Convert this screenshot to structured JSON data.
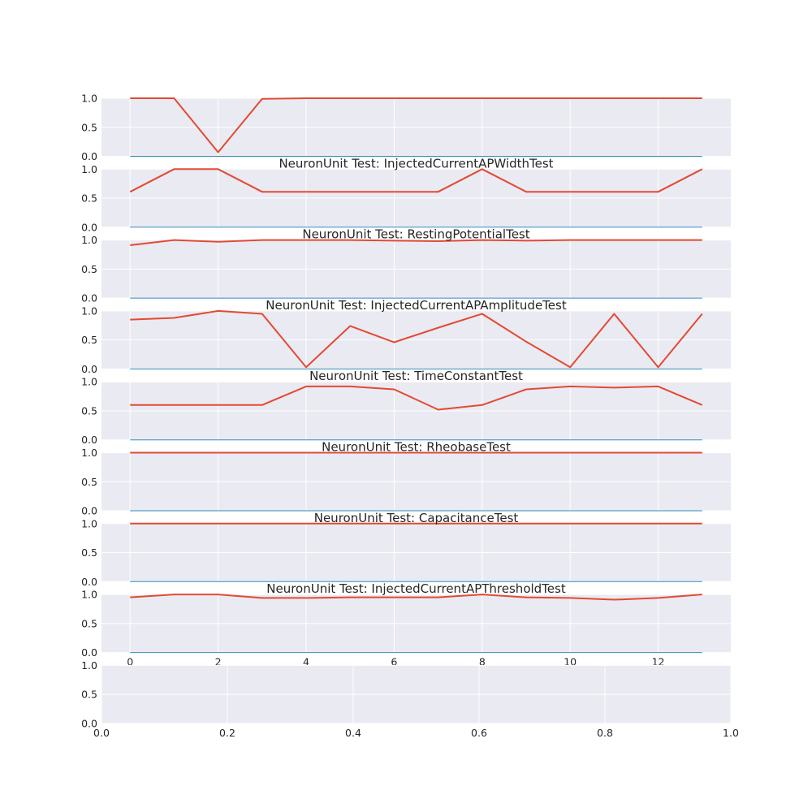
{
  "chart_data": [
    {
      "type": "line",
      "title": "",
      "x": [
        0,
        1,
        2,
        3,
        4,
        5,
        6,
        7,
        8,
        9,
        10,
        11,
        12,
        13
      ],
      "series": [
        {
          "values": [
            1.0,
            1.0,
            0.07,
            0.99,
            1.0,
            1.0,
            1.0,
            1.0,
            1.0,
            1.0,
            1.0,
            1.0,
            1.0,
            1.0
          ]
        },
        {
          "values": [
            0,
            0,
            0,
            0,
            0,
            0,
            0,
            0,
            0,
            0,
            0,
            0,
            0,
            0
          ]
        }
      ],
      "ylim": [
        0,
        1
      ],
      "xlim": [
        -0.65,
        13.65
      ],
      "yticks": [
        "1.0",
        "0.5",
        "0.0"
      ],
      "xticks": [],
      "grid": true
    },
    {
      "type": "line",
      "title": "NeuronUnit Test: InjectedCurrentAPWidthTest",
      "x": [
        0,
        1,
        2,
        3,
        4,
        5,
        6,
        7,
        8,
        9,
        10,
        11,
        12,
        13
      ],
      "series": [
        {
          "values": [
            0.61,
            1.0,
            1.0,
            0.61,
            0.61,
            0.61,
            0.61,
            0.61,
            1.0,
            0.61,
            0.61,
            0.61,
            0.61,
            1.0
          ]
        },
        {
          "values": [
            0,
            0,
            0,
            0,
            0,
            0,
            0,
            0,
            0,
            0,
            0,
            0,
            0,
            0
          ]
        }
      ],
      "ylim": [
        0,
        1
      ],
      "xlim": [
        -0.65,
        13.65
      ],
      "yticks": [
        "1.0",
        "0.5",
        "0.0"
      ],
      "xticks": [],
      "grid": true
    },
    {
      "type": "line",
      "title": "NeuronUnit Test: RestingPotentialTest",
      "x": [
        0,
        1,
        2,
        3,
        4,
        5,
        6,
        7,
        8,
        9,
        10,
        11,
        12,
        13
      ],
      "series": [
        {
          "values": [
            0.91,
            1.0,
            0.97,
            1.0,
            1.0,
            1.0,
            0.99,
            0.98,
            1.0,
            0.99,
            1.0,
            1.0,
            1.0,
            1.0
          ]
        },
        {
          "values": [
            0,
            0,
            0,
            0,
            0,
            0,
            0,
            0,
            0,
            0,
            0,
            0,
            0,
            0
          ]
        }
      ],
      "ylim": [
        0,
        1
      ],
      "xlim": [
        -0.65,
        13.65
      ],
      "yticks": [
        "1.0",
        "0.5",
        "0.0"
      ],
      "xticks": [],
      "grid": true
    },
    {
      "type": "line",
      "title": "NeuronUnit Test: InjectedCurrentAPAmplitudeTest",
      "x": [
        0,
        1,
        2,
        3,
        4,
        5,
        6,
        7,
        8,
        9,
        10,
        11,
        12,
        13
      ],
      "series": [
        {
          "values": [
            0.85,
            0.88,
            1.0,
            0.95,
            0.03,
            0.74,
            0.46,
            0.71,
            0.95,
            0.47,
            0.03,
            0.95,
            0.03,
            0.95
          ]
        },
        {
          "values": [
            0,
            0,
            0,
            0,
            0,
            0,
            0,
            0,
            0,
            0,
            0,
            0,
            0,
            0
          ]
        }
      ],
      "ylim": [
        0,
        1
      ],
      "xlim": [
        -0.65,
        13.65
      ],
      "yticks": [
        "1.0",
        "0.5",
        "0.0"
      ],
      "xticks": [],
      "grid": true
    },
    {
      "type": "line",
      "title": "NeuronUnit Test: TimeConstantTest",
      "x": [
        0,
        1,
        2,
        3,
        4,
        5,
        6,
        7,
        8,
        9,
        10,
        11,
        12,
        13
      ],
      "series": [
        {
          "values": [
            0.6,
            0.6,
            0.6,
            0.6,
            0.92,
            0.92,
            0.87,
            0.52,
            0.6,
            0.87,
            0.92,
            0.9,
            0.92,
            0.6
          ]
        },
        {
          "values": [
            0,
            0,
            0,
            0,
            0,
            0,
            0,
            0,
            0,
            0,
            0,
            0,
            0,
            0
          ]
        }
      ],
      "ylim": [
        0,
        1
      ],
      "xlim": [
        -0.65,
        13.65
      ],
      "yticks": [
        "1.0",
        "0.5",
        "0.0"
      ],
      "xticks": [],
      "grid": true
    },
    {
      "type": "line",
      "title": "NeuronUnit Test: RheobaseTest",
      "x": [
        0,
        1,
        2,
        3,
        4,
        5,
        6,
        7,
        8,
        9,
        10,
        11,
        12,
        13
      ],
      "series": [
        {
          "values": [
            1,
            1,
            1,
            1,
            1,
            1,
            1,
            1,
            1,
            1,
            1,
            1,
            1,
            1
          ]
        },
        {
          "values": [
            0,
            0,
            0,
            0,
            0,
            0,
            0,
            0,
            0,
            0,
            0,
            0,
            0,
            0
          ]
        }
      ],
      "ylim": [
        0,
        1
      ],
      "xlim": [
        -0.65,
        13.65
      ],
      "yticks": [
        "1.0",
        "0.5",
        "0.0"
      ],
      "xticks": [],
      "grid": true
    },
    {
      "type": "line",
      "title": "NeuronUnit Test: CapacitanceTest",
      "x": [
        0,
        1,
        2,
        3,
        4,
        5,
        6,
        7,
        8,
        9,
        10,
        11,
        12,
        13
      ],
      "series": [
        {
          "values": [
            1,
            1,
            1,
            1,
            1,
            1,
            1,
            1,
            1,
            1,
            1,
            1,
            1,
            1
          ]
        },
        {
          "values": [
            0,
            0,
            0,
            0,
            0,
            0,
            0,
            0,
            0,
            0,
            0,
            0,
            0,
            0
          ]
        }
      ],
      "ylim": [
        0,
        1
      ],
      "xlim": [
        -0.65,
        13.65
      ],
      "yticks": [
        "1.0",
        "0.5",
        "0.0"
      ],
      "xticks": [],
      "grid": true
    },
    {
      "type": "line",
      "title": "NeuronUnit Test: InjectedCurrentAPThresholdTest",
      "x": [
        0,
        1,
        2,
        3,
        4,
        5,
        6,
        7,
        8,
        9,
        10,
        11,
        12,
        13
      ],
      "series": [
        {
          "values": [
            0.95,
            1.0,
            1.0,
            0.94,
            0.94,
            0.95,
            0.95,
            0.95,
            1.0,
            0.95,
            0.94,
            0.91,
            0.94,
            1.0
          ]
        },
        {
          "values": [
            0,
            0,
            0,
            0,
            0,
            0,
            0,
            0,
            0,
            0,
            0,
            0,
            0,
            0
          ]
        }
      ],
      "ylim": [
        0,
        1
      ],
      "xlim": [
        -0.65,
        13.65
      ],
      "yticks": [
        "1.0",
        "0.5",
        "0.0"
      ],
      "xticks": [
        "0",
        "2",
        "4",
        "6",
        "8",
        "10",
        "12"
      ],
      "grid": true
    },
    {
      "type": "line",
      "title": "",
      "x": [],
      "series": [],
      "ylim": [
        0,
        1
      ],
      "xlim": [
        0,
        1
      ],
      "yticks": [
        "1.0",
        "0.5",
        "0.0"
      ],
      "xticks": [
        "0.0",
        "0.2",
        "0.4",
        "0.6",
        "0.8",
        "1.0"
      ],
      "grid": true
    }
  ],
  "colors": {
    "score_line": "#e24a33",
    "baseline": "#348abd",
    "panel_bg": "#eaeaf2",
    "grid": "#ffffff",
    "text": "#262626"
  }
}
